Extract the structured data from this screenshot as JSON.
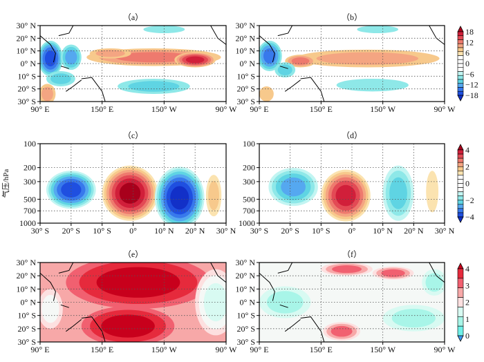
{
  "chart_data": [
    {
      "id": "a",
      "type": "heatmap",
      "title": "（a）",
      "kind": "map",
      "xticks": [
        "90° E",
        "150° E",
        "150° W",
        "90° W"
      ],
      "xrange": [
        90,
        270
      ],
      "yticks": [
        "30° N",
        "20° N",
        "10° N",
        "0° N",
        "10° S",
        "20° S",
        "30° S"
      ],
      "yrange": [
        -30,
        30
      ],
      "colorbar": {
        "labels": [
          "18",
          "12",
          "6",
          "0",
          "−6",
          "−12",
          "−18"
        ],
        "min": -18,
        "max": 18,
        "step": 3
      },
      "blobs": [
        {
          "x": 200,
          "y": 5,
          "rx": 65,
          "ry": 7,
          "v": 11
        },
        {
          "x": 240,
          "y": 3,
          "rx": 20,
          "ry": 6,
          "v": 16
        },
        {
          "x": 158,
          "y": 8,
          "rx": 20,
          "ry": 4,
          "v": 6
        },
        {
          "x": 100,
          "y": 4,
          "rx": 12,
          "ry": 14,
          "v": -15
        },
        {
          "x": 120,
          "y": 5,
          "rx": 10,
          "ry": 10,
          "v": -10
        },
        {
          "x": 110,
          "y": -12,
          "rx": 14,
          "ry": 6,
          "v": -8
        },
        {
          "x": 200,
          "y": -18,
          "rx": 35,
          "ry": 6,
          "v": -8
        },
        {
          "x": 210,
          "y": 27,
          "rx": 20,
          "ry": 3,
          "v": -4
        },
        {
          "x": 97,
          "y": -24,
          "rx": 8,
          "ry": 8,
          "v": 8
        }
      ]
    },
    {
      "id": "b",
      "type": "heatmap",
      "title": "（b）",
      "kind": "map",
      "xticks": [
        "90° E",
        "150° E",
        "150° W",
        "90° W"
      ],
      "xrange": [
        90,
        270
      ],
      "yticks": [
        "30° N",
        "20° N",
        "10° N",
        "0° N",
        "10° S",
        "20° S",
        "30° S"
      ],
      "yrange": [
        -30,
        30
      ],
      "colorbar": {
        "labels": [
          "18",
          "12",
          "6",
          "0",
          "−6",
          "−12",
          "−18"
        ],
        "min": -18,
        "max": 18,
        "step": 3
      },
      "blobs": [
        {
          "x": 195,
          "y": 4,
          "rx": 70,
          "ry": 7,
          "v": 6
        },
        {
          "x": 130,
          "y": 2,
          "rx": 15,
          "ry": 5,
          "v": 10
        },
        {
          "x": 100,
          "y": 6,
          "rx": 12,
          "ry": 12,
          "v": -13
        },
        {
          "x": 115,
          "y": -5,
          "rx": 10,
          "ry": 6,
          "v": -8
        },
        {
          "x": 200,
          "y": -17,
          "rx": 35,
          "ry": 5,
          "v": -5
        },
        {
          "x": 205,
          "y": 27,
          "rx": 20,
          "ry": 3,
          "v": -4
        },
        {
          "x": 97,
          "y": -24,
          "rx": 7,
          "ry": 6,
          "v": 5
        }
      ]
    },
    {
      "id": "c",
      "type": "heatmap",
      "title": "（c）",
      "kind": "section",
      "ylabel": "气压/hPa",
      "xticks": [
        "30° S",
        "20° S",
        "10° S",
        "0°",
        "10° N",
        "20° N",
        "30° N"
      ],
      "xrange": [
        -30,
        30
      ],
      "yticks": [
        "100",
        "200",
        "300",
        "500",
        "700",
        "1000"
      ],
      "yrange": [
        100,
        1000
      ],
      "colorbar": {
        "labels": [
          "4",
          "2",
          "0",
          "−2",
          "−4"
        ],
        "min": -4,
        "max": 4,
        "step": 0.5
      },
      "blobs": [
        {
          "x": -20,
          "y": 380,
          "rx": 8,
          "ry": 0.55,
          "v": -3
        },
        {
          "x": -1,
          "y": 420,
          "rx": 9,
          "ry": 0.8,
          "v": 3.8
        },
        {
          "x": 15,
          "y": 480,
          "rx": 8,
          "ry": 0.9,
          "v": -3.8
        },
        {
          "x": 26,
          "y": 450,
          "rx": 2.5,
          "ry": 0.6,
          "v": 1
        }
      ]
    },
    {
      "id": "d",
      "type": "heatmap",
      "title": "（d）",
      "kind": "section",
      "xticks": [
        "30° S",
        "20° S",
        "10° S",
        "0°",
        "10° N",
        "20° N",
        "30° N"
      ],
      "xrange": [
        -30,
        30
      ],
      "yticks": [
        "100",
        "200",
        "300",
        "500",
        "700",
        "1000"
      ],
      "yrange": [
        100,
        1000
      ],
      "colorbar": {
        "labels": [
          "4",
          "2",
          "0",
          "−2",
          "−4"
        ],
        "min": -4,
        "max": 4,
        "step": 0.5
      },
      "blobs": [
        {
          "x": -19,
          "y": 350,
          "rx": 8,
          "ry": 0.55,
          "v": -2
        },
        {
          "x": -2,
          "y": 450,
          "rx": 8,
          "ry": 0.75,
          "v": 3
        },
        {
          "x": 15,
          "y": 420,
          "rx": 5,
          "ry": 0.8,
          "v": -1.8
        },
        {
          "x": 26,
          "y": 400,
          "rx": 2,
          "ry": 0.6,
          "v": 0.8
        }
      ]
    },
    {
      "id": "e",
      "type": "heatmap",
      "title": "（e）",
      "kind": "map",
      "xticks": [
        "90° E",
        "150° E",
        "150° W",
        "90° W"
      ],
      "xrange": [
        90,
        270
      ],
      "yticks": [
        "30° N",
        "20° N",
        "10° N",
        "0° N",
        "10° S",
        "20° S",
        "30° S"
      ],
      "yrange": [
        -30,
        30
      ],
      "colorbar": {
        "labels": [
          "4",
          "3",
          "2",
          "1",
          "0"
        ],
        "min": -0.5,
        "max": 4,
        "step": 0.5
      },
      "background": 2.6,
      "blobs": [
        {
          "x": 185,
          "y": 15,
          "rx": 70,
          "ry": 20,
          "v": 4
        },
        {
          "x": 175,
          "y": -18,
          "rx": 45,
          "ry": 15,
          "v": 4
        },
        {
          "x": 260,
          "y": 0,
          "rx": 20,
          "ry": 25,
          "v": 1.2
        },
        {
          "x": 100,
          "y": -5,
          "rx": 12,
          "ry": 15,
          "v": 1.8
        }
      ]
    },
    {
      "id": "f",
      "type": "heatmap",
      "title": "（f）",
      "kind": "map",
      "xticks": [
        "90° E",
        "150° E",
        "150° W",
        "90° W"
      ],
      "xrange": [
        90,
        270
      ],
      "yticks": [
        "30° N",
        "20° N",
        "10° N",
        "0° N",
        "10° S",
        "20° S",
        "30° S"
      ],
      "yrange": [
        -30,
        30
      ],
      "colorbar": {
        "labels": [
          "4",
          "3",
          "2",
          "1",
          "0"
        ],
        "min": -0.5,
        "max": 4,
        "step": 0.5
      },
      "background": 1.7,
      "blobs": [
        {
          "x": 175,
          "y": 25,
          "rx": 25,
          "ry": 5,
          "v": 3.3
        },
        {
          "x": 220,
          "y": 22,
          "rx": 20,
          "ry": 5,
          "v": 3.2
        },
        {
          "x": 170,
          "y": -22,
          "rx": 18,
          "ry": 7,
          "v": 3.2
        },
        {
          "x": 115,
          "y": 0,
          "rx": 25,
          "ry": 12,
          "v": 0.8
        },
        {
          "x": 240,
          "y": -12,
          "rx": 30,
          "ry": 10,
          "v": 0.9
        },
        {
          "x": 260,
          "y": 15,
          "rx": 12,
          "ry": 10,
          "v": 0.5
        }
      ]
    }
  ]
}
